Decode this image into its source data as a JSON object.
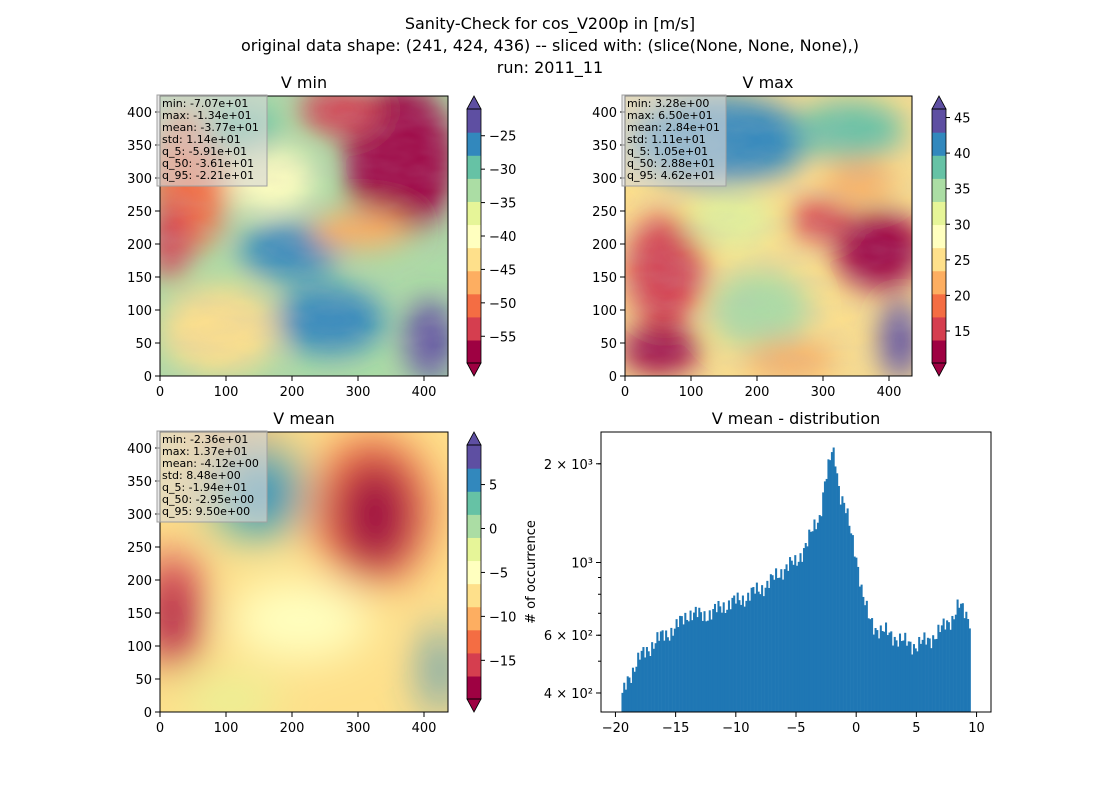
{
  "figure": {
    "title_lines": [
      "Sanity-Check for cos_V200p in [m/s]",
      "original data shape: (241, 424, 436) -- sliced with: (slice(None, None, None),)",
      "run: 2011_11"
    ]
  },
  "colors": {
    "spectral": [
      "#9e0142",
      "#d53e4f",
      "#f46d43",
      "#fdae61",
      "#fee08b",
      "#ffffbf",
      "#e6f598",
      "#abdda4",
      "#66c2a5",
      "#3288bd",
      "#5e4fa2"
    ],
    "histogram_bar": "#1f77b4",
    "statbox_bg": "#d9d9d9"
  },
  "panels": [
    {
      "title": "V min",
      "x_ticks": [
        "0",
        "100",
        "200",
        "300",
        "400"
      ],
      "y_ticks": [
        "0",
        "50",
        "100",
        "150",
        "200",
        "250",
        "300",
        "350",
        "400"
      ],
      "colorbar": {
        "vmin": -59,
        "vmax": -21,
        "ticks": [
          "-55",
          "-50",
          "-45",
          "-40",
          "-35",
          "-30",
          "-25"
        ]
      },
      "stats": [
        "min: -7.07e+01",
        "max: -1.34e+01",
        "mean: -3.77e+01",
        "std: 1.14e+01",
        "q_5: -5.91e+01",
        "q_50: -3.61e+01",
        "q_95: -2.21e+01"
      ]
    },
    {
      "title": "V max",
      "x_ticks": [
        "0",
        "100",
        "200",
        "300",
        "400"
      ],
      "y_ticks": [
        "0",
        "50",
        "100",
        "150",
        "200",
        "250",
        "300",
        "350",
        "400"
      ],
      "colorbar": {
        "vmin": 10.5,
        "vmax": 46.2,
        "ticks": [
          "15",
          "20",
          "25",
          "30",
          "35",
          "40",
          "45"
        ]
      },
      "stats": [
        "min: 3.28e+00",
        "max: 6.50e+01",
        "mean: 2.84e+01",
        "std: 1.11e+01",
        "q_5: 1.05e+01",
        "q_50: 2.88e+01",
        "q_95: 4.62e+01"
      ]
    },
    {
      "title": "V mean",
      "x_ticks": [
        "0",
        "100",
        "200",
        "300",
        "400"
      ],
      "y_ticks": [
        "0",
        "50",
        "100",
        "150",
        "200",
        "250",
        "300",
        "350",
        "400"
      ],
      "colorbar": {
        "vmin": -19.4,
        "vmax": 9.5,
        "ticks": [
          "-15",
          "-10",
          "-5",
          "0",
          "5"
        ]
      },
      "stats": [
        "min: -2.36e+01",
        "max: 1.37e+01",
        "mean: -4.12e+00",
        "std: 8.48e+00",
        "q_5: -1.94e+01",
        "q_50: -2.95e+00",
        "q_95: 9.50e+00"
      ]
    }
  ],
  "chart_data": [
    {
      "type": "heatmap",
      "title": "V min",
      "xlim": [
        0,
        436
      ],
      "ylim": [
        0,
        424
      ],
      "color_range": [
        -59,
        -21
      ],
      "colormap": "Spectral",
      "colorbar_extend": "both"
    },
    {
      "type": "heatmap",
      "title": "V max",
      "xlim": [
        0,
        436
      ],
      "ylim": [
        0,
        424
      ],
      "color_range": [
        10.5,
        46.2
      ],
      "colormap": "Spectral",
      "colorbar_extend": "both"
    },
    {
      "type": "heatmap",
      "title": "V mean",
      "xlim": [
        0,
        436
      ],
      "ylim": [
        0,
        424
      ],
      "color_range": [
        -19.4,
        9.5
      ],
      "colormap": "Spectral",
      "colorbar_extend": "both"
    },
    {
      "type": "bar",
      "title": "V mean - distribution",
      "ylabel": "# of occurrence",
      "xlim": [
        -21.2,
        11.2
      ],
      "ylim": [
        350,
        2500
      ],
      "yscale": "log",
      "x_ticks": [
        "−20",
        "−15",
        "−10",
        "−5",
        "0",
        "5",
        "10"
      ],
      "y_ticks": [
        {
          "value": 400,
          "label": "4 × 10²"
        },
        {
          "value": 600,
          "label": "6 × 10²"
        },
        {
          "value": 1000,
          "label": "10³"
        },
        {
          "value": 2000,
          "label": "2 × 10³"
        }
      ],
      "bins": {
        "start": -19.5,
        "end": 9.5,
        "count": 200
      },
      "anchors": [
        [
          -19.5,
          380
        ],
        [
          -19.0,
          440
        ],
        [
          -18.0,
          510
        ],
        [
          -17.0,
          560
        ],
        [
          -16.0,
          600
        ],
        [
          -15.0,
          630
        ],
        [
          -14.0,
          700
        ],
        [
          -13.0,
          690
        ],
        [
          -12.0,
          700
        ],
        [
          -11.0,
          740
        ],
        [
          -10.0,
          760
        ],
        [
          -9.0,
          790
        ],
        [
          -8.0,
          830
        ],
        [
          -7.0,
          880
        ],
        [
          -6.0,
          960
        ],
        [
          -5.0,
          1000
        ],
        [
          -4.0,
          1160
        ],
        [
          -3.0,
          1400
        ],
        [
          -2.6,
          1750
        ],
        [
          -2.2,
          2000
        ],
        [
          -2.0,
          2200
        ],
        [
          -1.7,
          2050
        ],
        [
          -1.4,
          1650
        ],
        [
          -1.0,
          1500
        ],
        [
          -0.5,
          1250
        ],
        [
          0.0,
          1050
        ],
        [
          0.5,
          800
        ],
        [
          1.0,
          680
        ],
        [
          1.5,
          640
        ],
        [
          2.0,
          620
        ],
        [
          3.0,
          600
        ],
        [
          4.0,
          570
        ],
        [
          5.0,
          560
        ],
        [
          6.0,
          580
        ],
        [
          7.0,
          620
        ],
        [
          8.0,
          680
        ],
        [
          8.5,
          740
        ],
        [
          9.0,
          700
        ],
        [
          9.5,
          670
        ]
      ]
    }
  ]
}
